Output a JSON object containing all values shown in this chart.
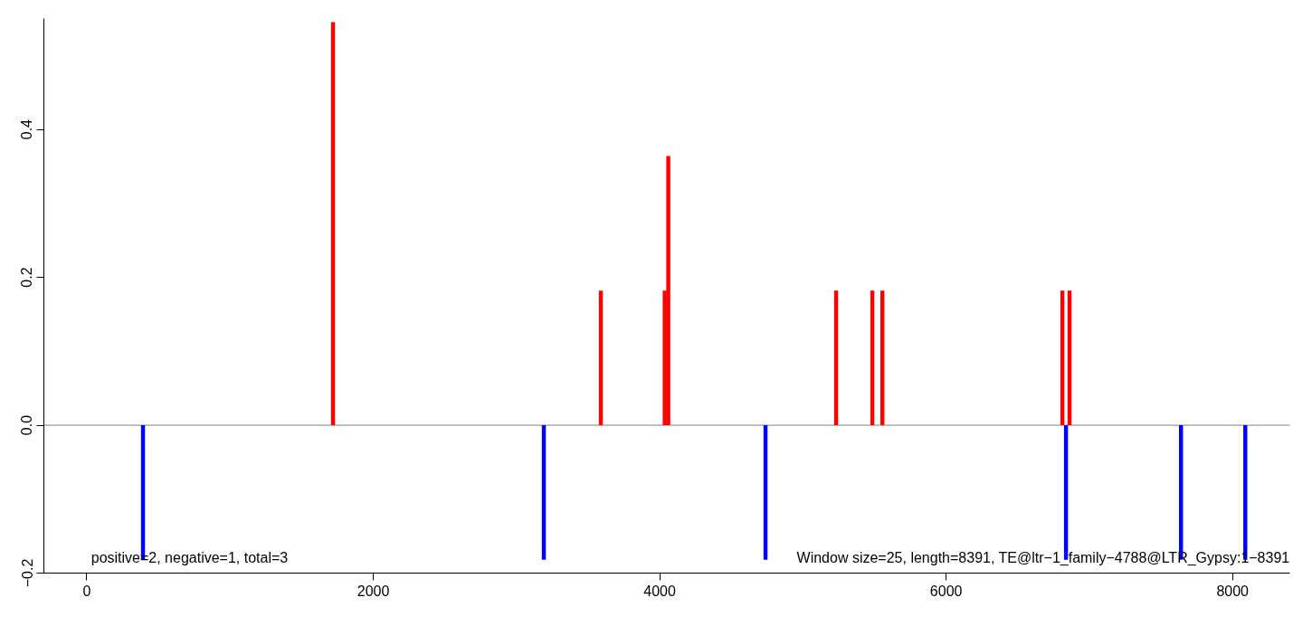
{
  "chart_data": {
    "type": "bar",
    "series": [
      {
        "color": "#ff0000",
        "x": [
          1719,
          3589,
          4035,
          4060,
          5232,
          5485,
          5555,
          6812,
          6862
        ],
        "values": [
          0.545,
          0.182,
          0.182,
          0.364,
          0.182,
          0.182,
          0.182,
          0.182,
          0.182
        ]
      },
      {
        "color": "#0000ff",
        "x": [
          392,
          3191,
          4739,
          6837,
          7640,
          8089
        ],
        "values": [
          -0.182,
          -0.182,
          -0.182,
          -0.182,
          -0.182,
          -0.182
        ]
      }
    ],
    "xlim": [
      -300,
      8400
    ],
    "ylim": [
      -0.2,
      0.55
    ],
    "xticks": [
      0,
      2000,
      4000,
      6000,
      8000
    ],
    "yticks": [
      {
        "value": -0.2,
        "label": "−0.2"
      },
      {
        "value": 0,
        "label": "0.0"
      },
      {
        "value": 0.2,
        "label": "0.2"
      },
      {
        "value": 0.4,
        "label": "0.4"
      }
    ],
    "ref_lines": [
      {
        "axis": "y",
        "value": 0,
        "color": "#808080"
      }
    ],
    "annotations": [
      "positive=2, negative=1, total=3",
      "Window size=25, length=8391, TE@ltr−1_family−4788@LTR_Gypsy:1−8391"
    ],
    "grid": false
  }
}
